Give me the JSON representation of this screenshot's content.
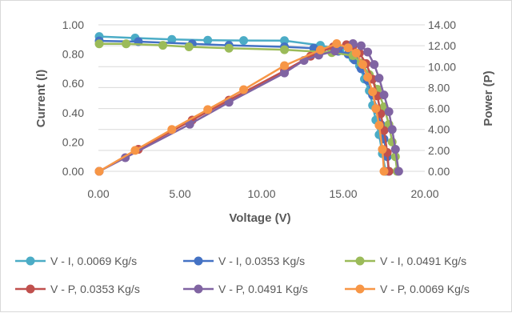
{
  "chart_data": {
    "type": "scatter",
    "xlabel": "Voltage (V)",
    "ylabel": "Current (I)",
    "y2label": "Power (P)",
    "xlim": [
      0,
      20
    ],
    "ylim": [
      0,
      1
    ],
    "y2lim": [
      0,
      14
    ],
    "xticks": [
      "0.00",
      "5.00",
      "10.00",
      "15.00",
      "20.00"
    ],
    "yticks": [
      "0.00",
      "0.20",
      "0.40",
      "0.60",
      "0.80",
      "1.00"
    ],
    "y2ticks": [
      "0.00",
      "2.00",
      "4.00",
      "6.00",
      "8.00",
      "10.00",
      "12.00",
      "14.00"
    ],
    "grid": "horizontal",
    "legend_position": "bottom",
    "series": [
      {
        "name": "V - I, 0.0069 Kg/s",
        "axis": "left",
        "color": "#4bacc6",
        "x": [
          0.05,
          2.25,
          4.5,
          6.7,
          8.9,
          11.4,
          13.6,
          14.8,
          15.6,
          16.0,
          16.3,
          16.6,
          16.8,
          17.0,
          17.2,
          17.4,
          17.6
        ],
        "y": [
          0.92,
          0.91,
          0.9,
          0.895,
          0.893,
          0.892,
          0.86,
          0.83,
          0.77,
          0.72,
          0.63,
          0.55,
          0.45,
          0.35,
          0.25,
          0.12,
          0.0
        ]
      },
      {
        "name": "V - I, 0.0353 Kg/s",
        "axis": "left",
        "color": "#4472c4",
        "x": [
          0.05,
          2.45,
          5.75,
          8.0,
          11.4,
          13.2,
          14.7,
          15.3,
          15.7,
          16.1,
          16.5,
          16.8,
          17.1,
          17.3,
          17.5,
          17.7,
          17.8
        ],
        "y": [
          0.89,
          0.885,
          0.87,
          0.86,
          0.85,
          0.84,
          0.82,
          0.8,
          0.76,
          0.7,
          0.62,
          0.52,
          0.42,
          0.32,
          0.22,
          0.1,
          0.0
        ]
      },
      {
        "name": "V - I, 0.0491 Kg/s",
        "axis": "left",
        "color": "#9bbb59",
        "x": [
          0.05,
          1.7,
          3.95,
          5.55,
          8.0,
          11.4,
          14.3,
          15.6,
          16.1,
          16.6,
          17.1,
          17.5,
          17.8,
          18.0,
          18.2,
          18.3
        ],
        "y": [
          0.87,
          0.87,
          0.86,
          0.85,
          0.84,
          0.83,
          0.81,
          0.79,
          0.74,
          0.66,
          0.56,
          0.44,
          0.32,
          0.2,
          0.1,
          0.0
        ]
      },
      {
        "name": "V - P, 0.0353 Kg/s",
        "axis": "right",
        "color": "#c0504d",
        "x": [
          0.05,
          2.45,
          5.75,
          8.0,
          11.4,
          13.0,
          14.4,
          15.2,
          15.6,
          16.0,
          16.4,
          16.8,
          17.1,
          17.3,
          17.5,
          17.7,
          17.8
        ],
        "y": [
          0.0,
          2.1,
          4.9,
          6.8,
          9.6,
          11.0,
          11.9,
          12.1,
          12.0,
          11.3,
          10.3,
          8.8,
          7.2,
          5.5,
          3.9,
          1.8,
          0.0
        ]
      },
      {
        "name": "V - P, 0.0491 Kg/s",
        "axis": "right",
        "color": "#8064a2",
        "x": [
          0.05,
          1.65,
          5.6,
          8.0,
          11.4,
          12.6,
          13.5,
          14.5,
          15.6,
          16.1,
          16.5,
          16.9,
          17.2,
          17.5,
          17.8,
          18.0,
          18.2,
          18.4
        ],
        "y": [
          0.0,
          1.3,
          4.5,
          6.6,
          9.4,
          10.6,
          11.1,
          11.5,
          12.2,
          12.0,
          11.4,
          10.2,
          8.9,
          7.3,
          5.7,
          4.0,
          2.1,
          0.0
        ]
      },
      {
        "name": "V - P, 0.0069 Kg/s",
        "axis": "right",
        "color": "#f79646",
        "x": [
          0.05,
          2.25,
          4.5,
          6.7,
          8.9,
          11.4,
          13.6,
          14.6,
          15.3,
          15.8,
          16.2,
          16.5,
          16.8,
          17.0,
          17.2,
          17.4,
          17.5
        ],
        "y": [
          0.0,
          2.0,
          4.0,
          5.9,
          7.8,
          10.1,
          11.6,
          12.2,
          11.8,
          11.3,
          10.2,
          9.0,
          7.6,
          6.0,
          4.4,
          2.1,
          0.0
        ]
      }
    ]
  }
}
